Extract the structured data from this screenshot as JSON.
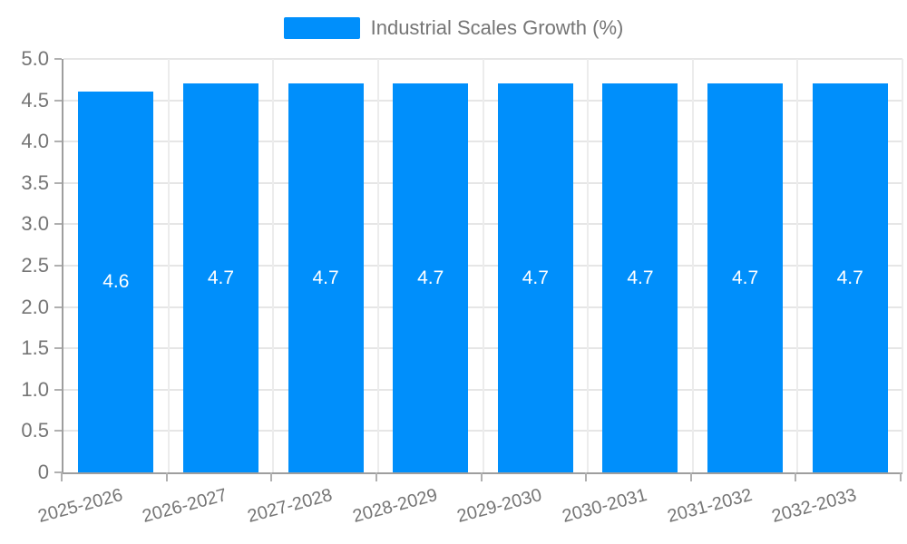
{
  "chart_data": {
    "type": "bar",
    "title": "Industrial Scales Growth (%)",
    "categories": [
      "2025-2026",
      "2026-2027",
      "2027-2028",
      "2028-2029",
      "2029-2030",
      "2030-2031",
      "2031-2032",
      "2032-2033"
    ],
    "values": [
      4.6,
      4.7,
      4.7,
      4.7,
      4.7,
      4.7,
      4.7,
      4.7
    ],
    "bar_labels": [
      "4.6",
      "4.7",
      "4.7",
      "4.7",
      "4.7",
      "4.7",
      "4.7",
      "4.7"
    ],
    "xlabel": "",
    "ylabel": "",
    "ylim": [
      0,
      5
    ],
    "ytick_step": 0.5,
    "ytick_labels": [
      "5.0",
      "4.5",
      "4.0",
      "3.5",
      "3.0",
      "2.5",
      "2.0",
      "1.5",
      "1.0",
      "0.5",
      "0"
    ],
    "grid": true,
    "legend_position": "top",
    "colors": {
      "bar": "#008FFB",
      "bar_value_text": "#ffffff",
      "axis_text": "#757575",
      "axis_line": "#9e9e9e",
      "gridline": "#e6e6e6",
      "tick": "#b0b0b0"
    }
  }
}
